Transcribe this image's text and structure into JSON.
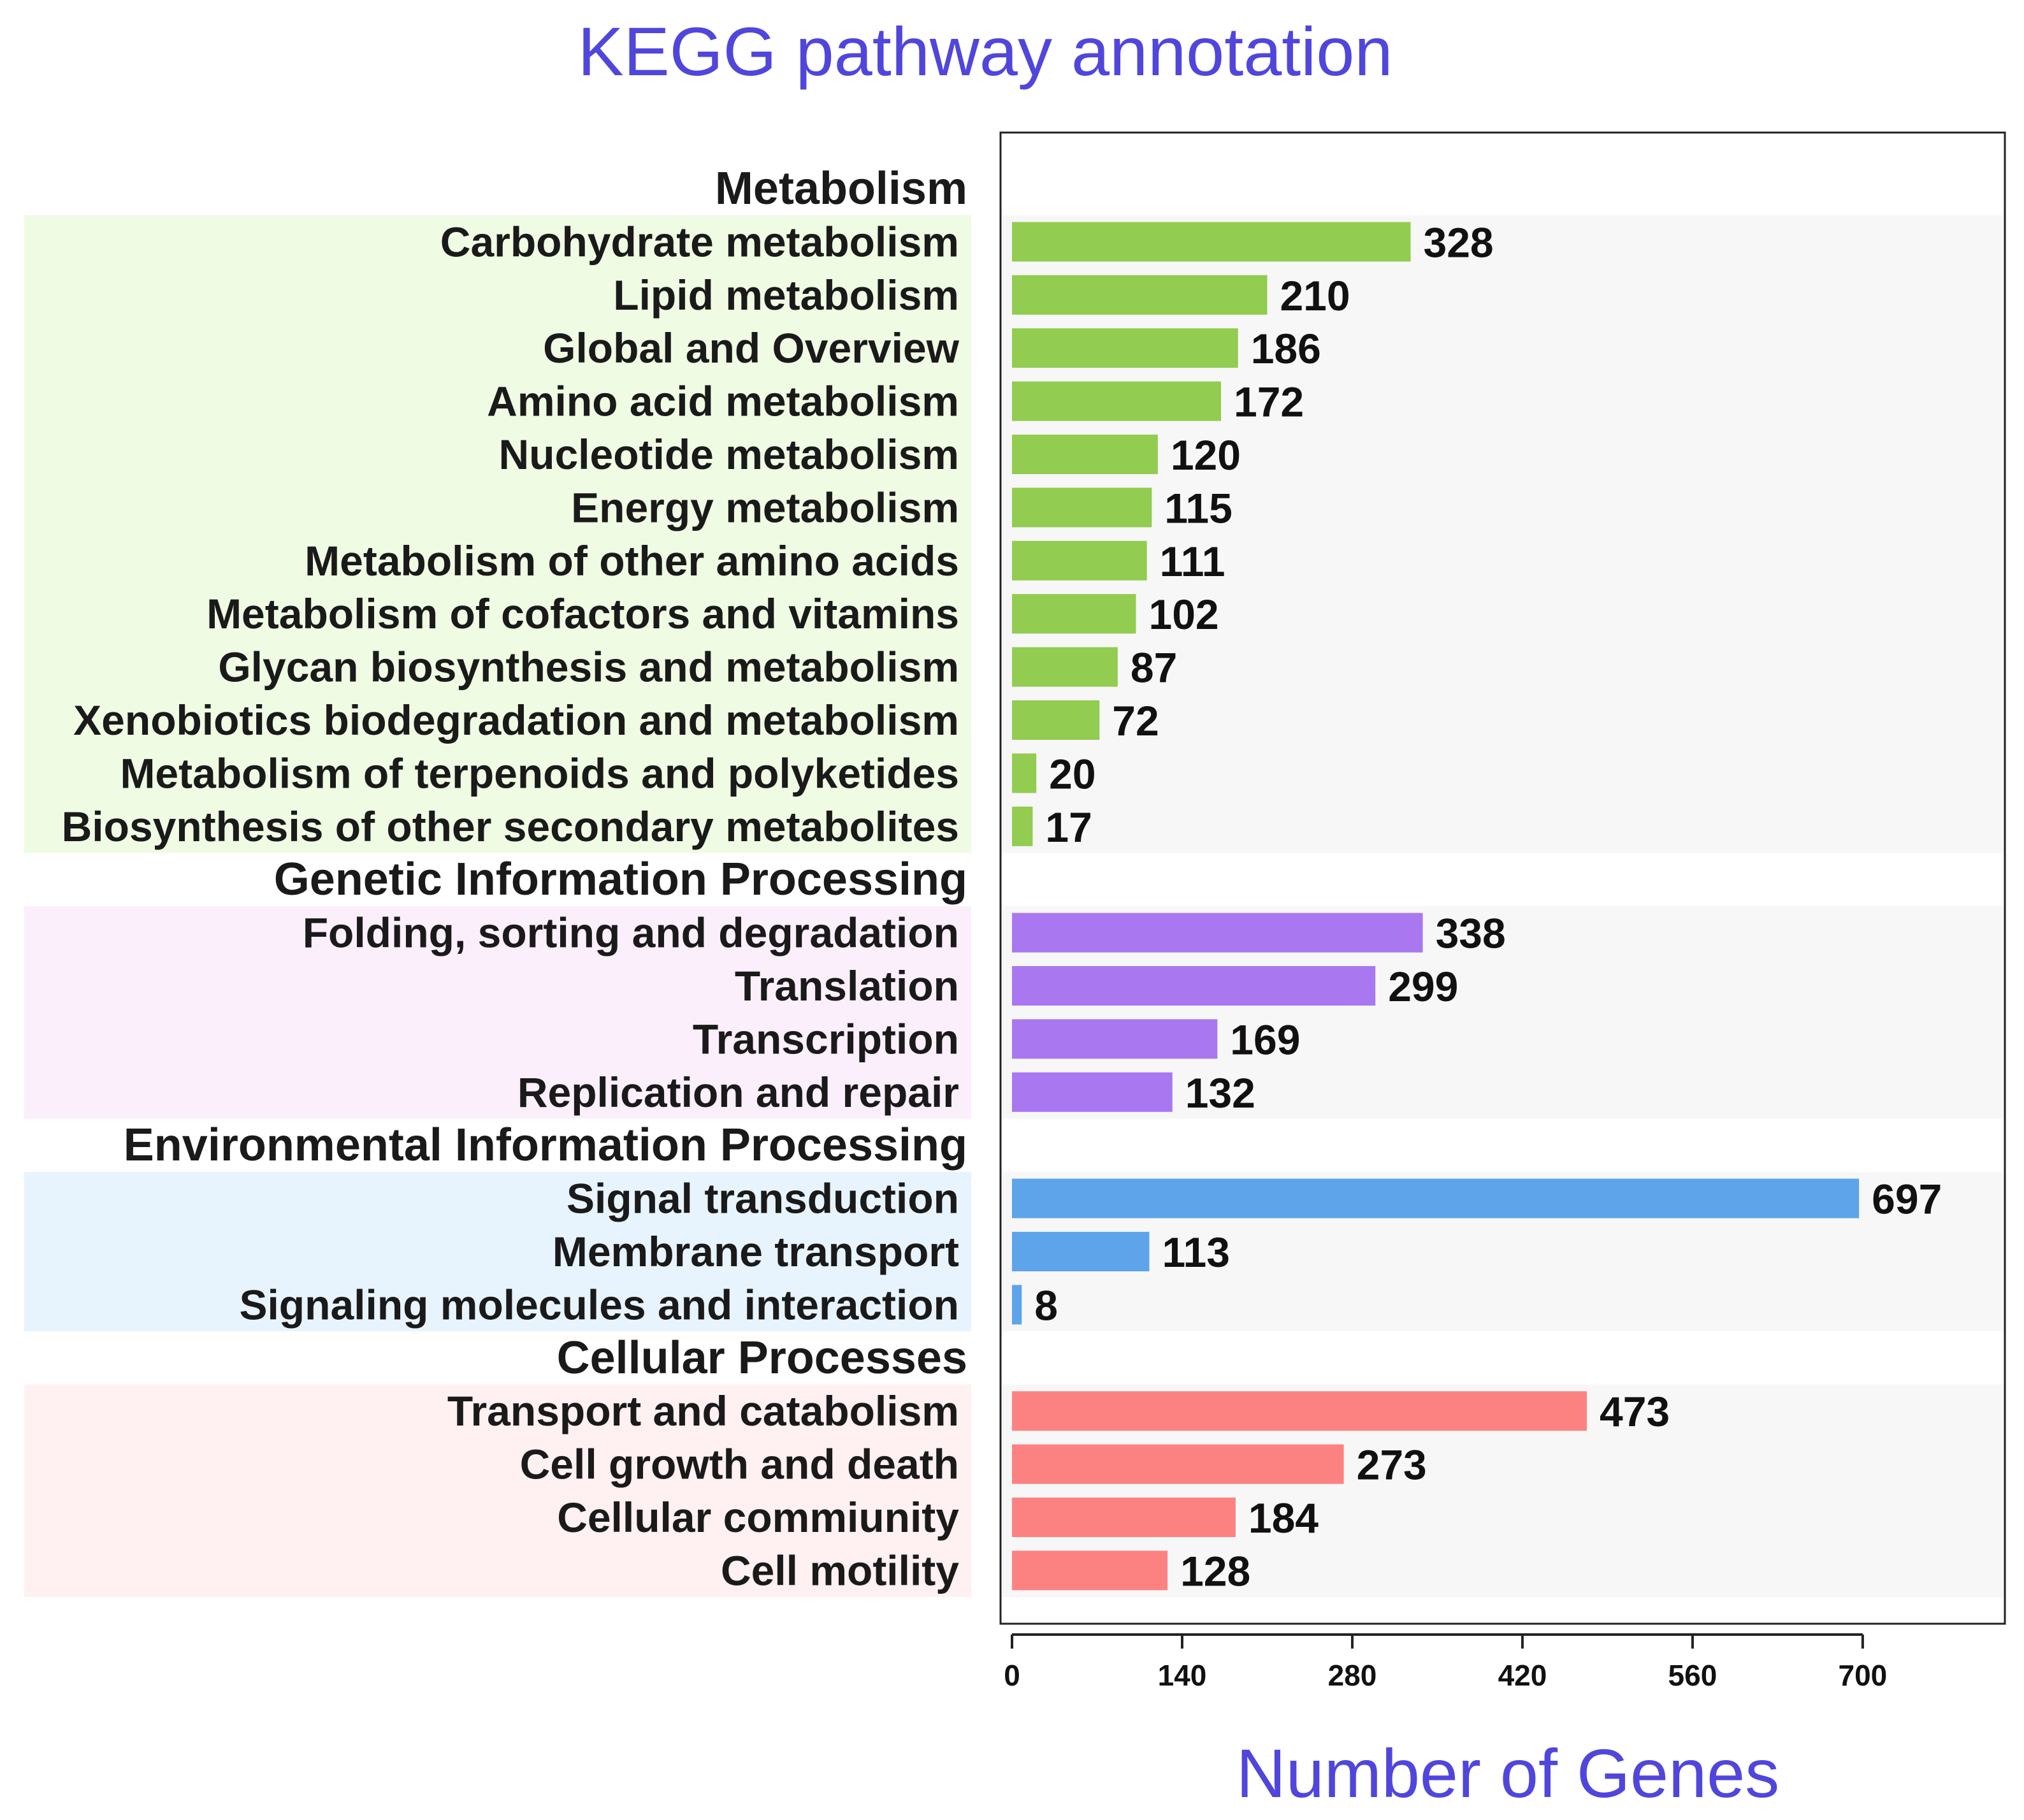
{
  "chart_data": {
    "type": "bar",
    "orientation": "horizontal",
    "title": "KEGG pathway annotation",
    "xlabel": "Number of Genes",
    "ylabel": "",
    "xlim": [
      0,
      780
    ],
    "xticks": [
      0,
      140,
      280,
      420,
      560,
      700
    ],
    "legend": "none",
    "grid": false,
    "groups": [
      {
        "name": "Metabolism",
        "color": "#92cc50",
        "band_color": "#effbe3",
        "categories": [
          "Carbohydrate metabolism",
          "Lipid metabolism",
          "Global and Overview",
          "Amino acid metabolism",
          "Nucleotide metabolism",
          "Energy metabolism",
          "Metabolism of other amino acids",
          "Metabolism of cofactors and vitamins",
          "Glycan biosynthesis and metabolism",
          "Xenobiotics biodegradation and metabolism",
          "Metabolism of terpenoids and polyketides",
          "Biosynthesis of other secondary metabolites"
        ],
        "values": [
          328,
          210,
          186,
          172,
          120,
          115,
          111,
          102,
          87,
          72,
          20,
          17
        ]
      },
      {
        "name": "Genetic Information Processing",
        "color": "#a978f0",
        "band_color": "#fbeffc",
        "categories": [
          "Folding, sorting and degradation",
          "Translation",
          "Transcription",
          "Replication and repair"
        ],
        "values": [
          338,
          299,
          169,
          132
        ]
      },
      {
        "name": "Environmental Information Processing",
        "color": "#5ea4ea",
        "band_color": "#e8f4fd",
        "categories": [
          "Signal transduction",
          "Membrane transport",
          "Signaling molecules and interaction"
        ],
        "values": [
          697,
          113,
          8
        ]
      },
      {
        "name": "Cellular Processes",
        "color": "#fc8282",
        "band_color": "#fff0f2",
        "categories": [
          "Transport and catabolism",
          "Cell growth and death",
          "Cellular commiunity",
          "Cell motility"
        ],
        "values": [
          473,
          273,
          184,
          128
        ]
      }
    ]
  },
  "colors": {
    "title": "#5046dc",
    "xlabel": "#5046dc",
    "plot_band": "#f7f7f7",
    "frame": "#222222"
  }
}
